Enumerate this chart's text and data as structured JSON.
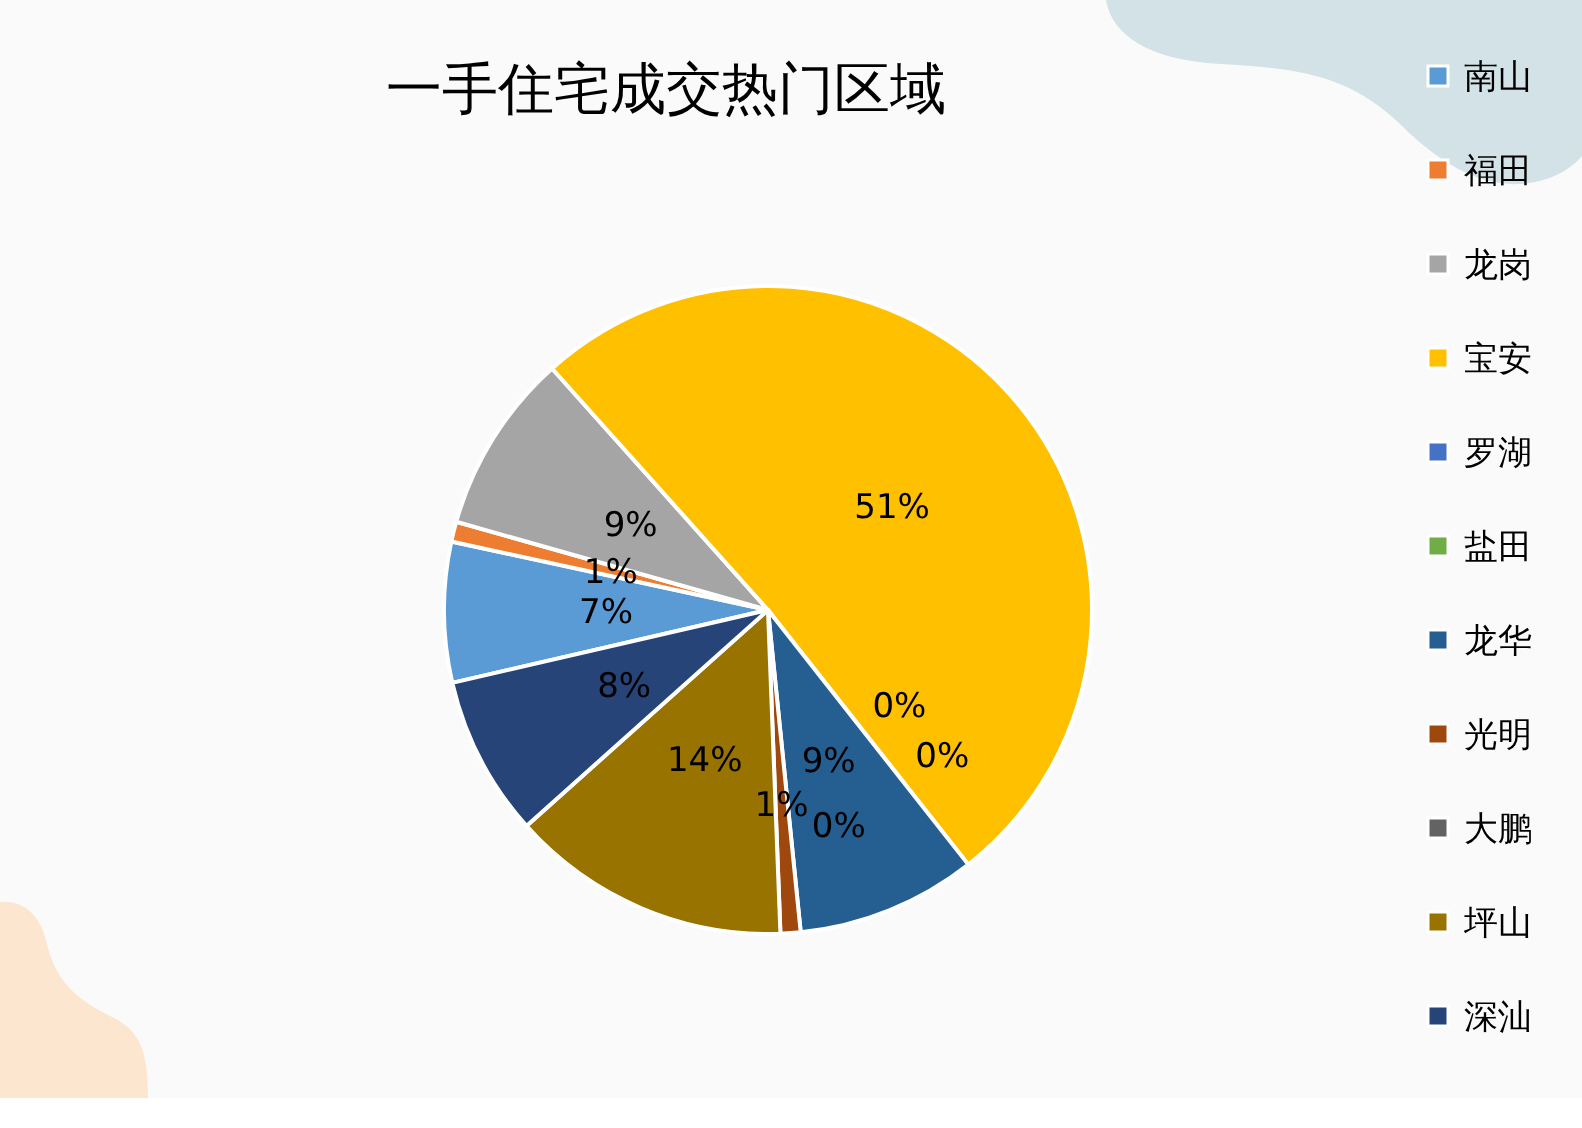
{
  "chart_data": {
    "type": "pie",
    "title": "一手住宅成交热门区域",
    "categories": [
      "南山",
      "福田",
      "龙岗",
      "宝安",
      "罗湖",
      "盐田",
      "龙华",
      "光明",
      "大鹏",
      "坪山",
      "深汕"
    ],
    "values": [
      7,
      1,
      9,
      51,
      0,
      0,
      9,
      1,
      0,
      14,
      8
    ],
    "value_labels": [
      "7%",
      "1%",
      "9%",
      "51%",
      "0%",
      "0%",
      "9%",
      "1%",
      "0%",
      "14%",
      "8%"
    ],
    "colors": [
      "#5b9bd5",
      "#ed7d31",
      "#a5a5a5",
      "#ffc000",
      "#4472c4",
      "#70ad47",
      "#255e91",
      "#9e480e",
      "#636363",
      "#997300",
      "#264478"
    ],
    "legend": "right"
  }
}
